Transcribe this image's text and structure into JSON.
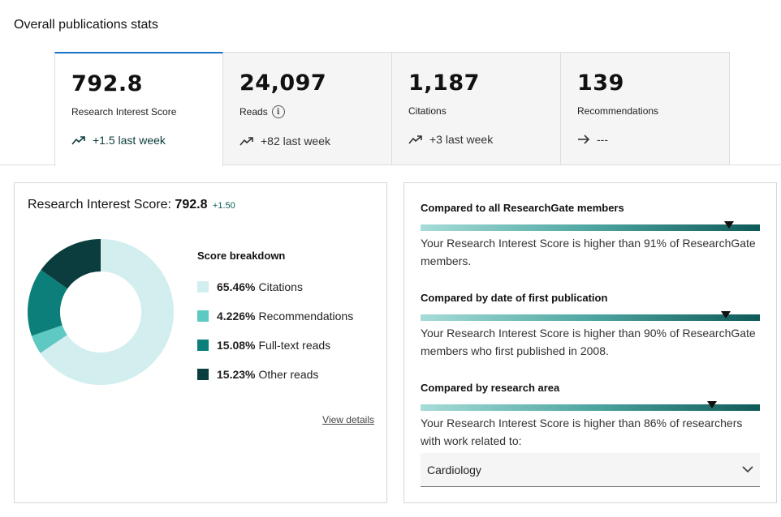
{
  "page_title": "Overall publications stats",
  "stats_tabs": [
    {
      "value": "792.8",
      "label": "Research Interest Score",
      "trend_icon": "trend-up-icon",
      "trend": "+1.5 last week",
      "active": true
    },
    {
      "value": "24,097",
      "label": "Reads",
      "has_info": true,
      "trend_icon": "trend-up-icon",
      "trend": "+82 last week"
    },
    {
      "value": "1,187",
      "label": "Citations",
      "trend_icon": "trend-up-icon",
      "trend": "+3 last week"
    },
    {
      "value": "139",
      "label": "Recommendations",
      "trend_icon": "arrow-right-icon",
      "trend": "---"
    }
  ],
  "score_panel": {
    "title_prefix": "Research Interest Score:",
    "title_value": "792.8",
    "title_delta": "+1.50",
    "breakdown_title": "Score breakdown",
    "breakdown": [
      {
        "percent": "65.46%",
        "label": "Citations",
        "value": 65.46,
        "color": "#d2eeee"
      },
      {
        "percent": "4.226%",
        "label": "Recommendations",
        "value": 4.226,
        "color": "#5ec8c2"
      },
      {
        "percent": "15.08%",
        "label": "Full-text reads",
        "value": 15.08,
        "color": "#0d7f7a"
      },
      {
        "percent": "15.23%",
        "label": "Other reads",
        "value": 15.23,
        "color": "#0b3d3e"
      }
    ],
    "view_details": "View details"
  },
  "comparisons": [
    {
      "heading": "Compared to all ResearchGate members",
      "percentile": 91,
      "description": "Your Research Interest Score is higher than 91% of ResearchGate members."
    },
    {
      "heading": "Compared by date of first publication",
      "percentile": 90,
      "description": "Your Research Interest Score is higher than 90% of ResearchGate members who first published in 2008."
    },
    {
      "heading": "Compared by research area",
      "percentile": 86,
      "description": "Your Research Interest Score is higher than 86% of researchers with work related to:"
    }
  ],
  "research_area_select": {
    "value": "Cardiology"
  }
}
